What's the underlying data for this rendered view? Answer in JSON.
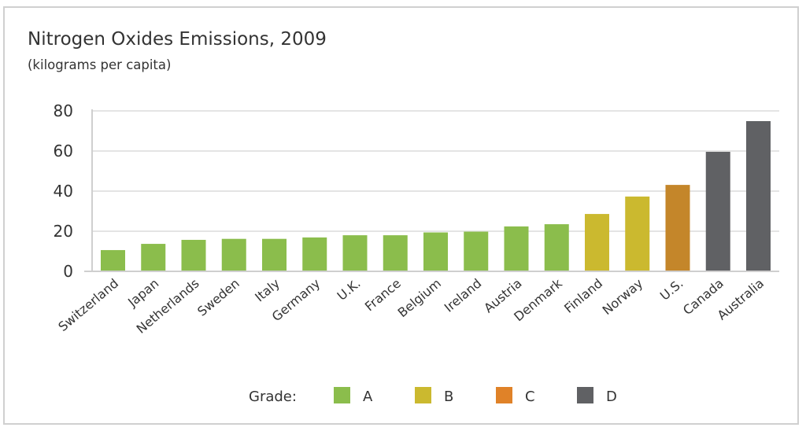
{
  "chart_data": {
    "type": "bar",
    "title": "Nitrogen Oxides Emissions, 2009",
    "subtitle": "(kilograms per capita)",
    "xlabel": "",
    "ylabel": "",
    "ylim": [
      0,
      80
    ],
    "yticks": [
      0,
      20,
      40,
      60,
      80
    ],
    "grid": true,
    "categories": [
      "Switzerland",
      "Japan",
      "Netherlands",
      "Sweden",
      "Italy",
      "Germany",
      "U.K.",
      "France",
      "Belgium",
      "Ireland",
      "Austria",
      "Denmark",
      "Finland",
      "Norway",
      "U.S.",
      "Canada",
      "Australia"
    ],
    "values": [
      10.6,
      13.7,
      15.7,
      16.2,
      16.2,
      16.9,
      18.0,
      18.0,
      19.4,
      19.8,
      22.4,
      23.5,
      28.6,
      37.3,
      43.1,
      59.6,
      74.9
    ],
    "grades": [
      "A",
      "A",
      "A",
      "A",
      "A",
      "A",
      "A",
      "A",
      "A",
      "A",
      "A",
      "A",
      "B",
      "B",
      "C",
      "D",
      "D"
    ],
    "legend": {
      "title": "Grade:",
      "position": "bottom",
      "entries": [
        {
          "label": "A",
          "color": "#8bbd4c"
        },
        {
          "label": "B",
          "color": "#cbb92f"
        },
        {
          "label": "C",
          "color": "#e08228"
        },
        {
          "label": "D",
          "color": "#606164"
        }
      ]
    },
    "bar_colors": {
      "A": "#8bbd4c",
      "B": "#cbb92f",
      "C": "#c4862a",
      "D": "#606164"
    }
  }
}
